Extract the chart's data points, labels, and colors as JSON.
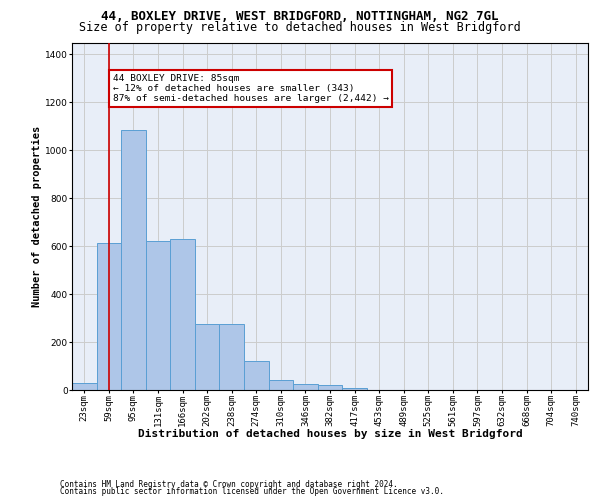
{
  "title_line1": "44, BOXLEY DRIVE, WEST BRIDGFORD, NOTTINGHAM, NG2 7GL",
  "title_line2": "Size of property relative to detached houses in West Bridgford",
  "xlabel": "Distribution of detached houses by size in West Bridgford",
  "ylabel": "Number of detached properties",
  "footer_line1": "Contains HM Land Registry data © Crown copyright and database right 2024.",
  "footer_line2": "Contains public sector information licensed under the Open Government Licence v3.0.",
  "bin_labels": [
    "23sqm",
    "59sqm",
    "95sqm",
    "131sqm",
    "166sqm",
    "202sqm",
    "238sqm",
    "274sqm",
    "310sqm",
    "346sqm",
    "382sqm",
    "417sqm",
    "453sqm",
    "489sqm",
    "525sqm",
    "561sqm",
    "597sqm",
    "632sqm",
    "668sqm",
    "704sqm",
    "740sqm"
  ],
  "bar_heights": [
    30,
    615,
    1085,
    620,
    630,
    275,
    275,
    120,
    40,
    25,
    20,
    10,
    0,
    0,
    0,
    0,
    0,
    0,
    0,
    0,
    0
  ],
  "bar_color": "#aec6e8",
  "bar_edge_color": "#5a9fd4",
  "annotation_text": "44 BOXLEY DRIVE: 85sqm\n← 12% of detached houses are smaller (343)\n87% of semi-detached houses are larger (2,442) →",
  "annotation_box_color": "#ffffff",
  "annotation_border_color": "#cc0000",
  "vline_color": "#cc0000",
  "vline_x_index": 1.5,
  "ylim": [
    0,
    1450
  ],
  "yticks": [
    0,
    200,
    400,
    600,
    800,
    1000,
    1200,
    1400
  ],
  "grid_color": "#cccccc",
  "bg_color": "#e8eef8",
  "title_fontsize": 9,
  "subtitle_fontsize": 8.5,
  "xlabel_fontsize": 8,
  "ylabel_fontsize": 7.5,
  "tick_fontsize": 6.5,
  "annotation_fontsize": 6.8,
  "footer_fontsize": 5.5
}
